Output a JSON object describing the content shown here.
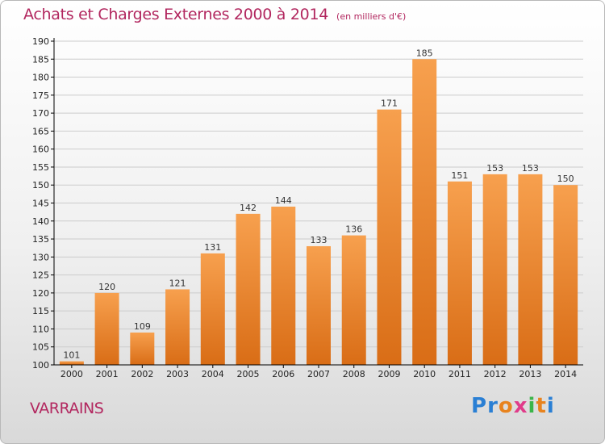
{
  "title": "Achats et Charges Externes 2000 à 2014",
  "subtitle": "(en milliers d'€)",
  "place": "VARRAINS",
  "logo_text": "Proxiti",
  "colors": {
    "title": "#b2275f",
    "bar_top": "#f7a04e",
    "bar_bottom": "#d96d16",
    "grid": "#cccccc",
    "axis": "#000000"
  },
  "chart_data": {
    "type": "bar",
    "title": "Achats et Charges Externes 2000 à 2014",
    "subtitle": "(en milliers d'€)",
    "xlabel": "",
    "ylabel": "",
    "categories": [
      "2000",
      "2001",
      "2002",
      "2003",
      "2004",
      "2005",
      "2006",
      "2007",
      "2008",
      "2009",
      "2010",
      "2011",
      "2012",
      "2013",
      "2014"
    ],
    "values": [
      101,
      120,
      109,
      121,
      131,
      142,
      144,
      133,
      136,
      171,
      185,
      151,
      153,
      153,
      150
    ],
    "ylim": [
      100,
      190
    ],
    "ytick_step": 5,
    "grid": true,
    "legend": "none"
  }
}
